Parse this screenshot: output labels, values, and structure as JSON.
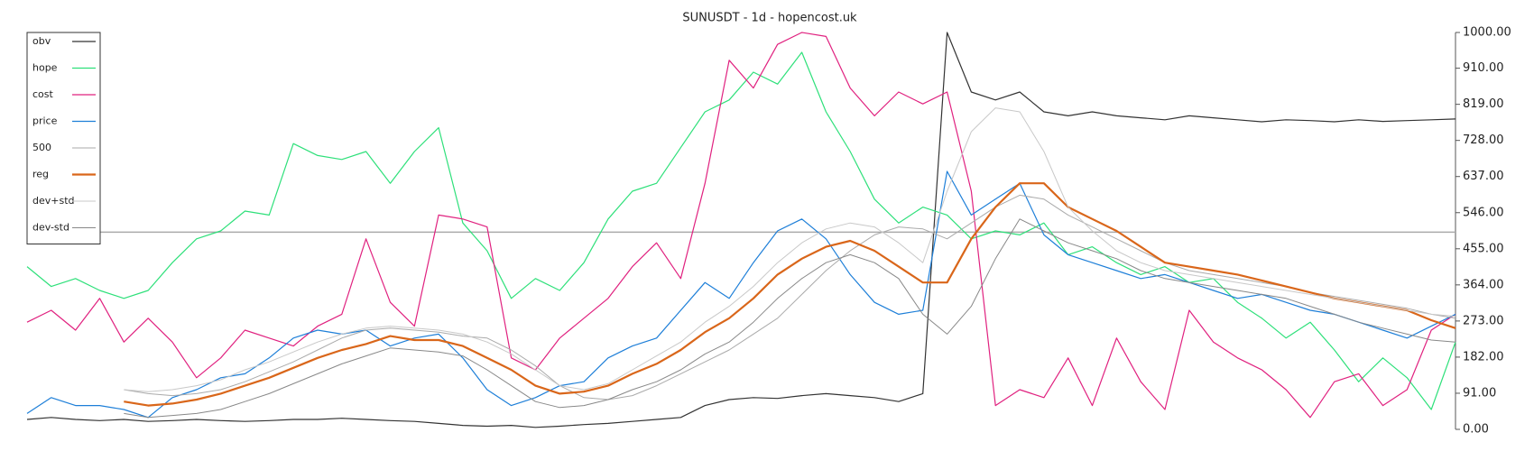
{
  "chart_data": {
    "type": "line",
    "title": "SUNUSDT - 1d - hopencost.uk",
    "ylim": [
      0,
      1000
    ],
    "yticks": [
      {
        "value": 0,
        "label": "0.00"
      },
      {
        "value": 91,
        "label": "91.00"
      },
      {
        "value": 182,
        "label": "182.00"
      },
      {
        "value": 273,
        "label": "273.00"
      },
      {
        "value": 364,
        "label": "364.00"
      },
      {
        "value": 455,
        "label": "455.00"
      },
      {
        "value": 546,
        "label": "546.00"
      },
      {
        "value": 637,
        "label": "637.00"
      },
      {
        "value": 728,
        "label": "728.00"
      },
      {
        "value": 819,
        "label": "819.00"
      },
      {
        "value": 910,
        "label": "910.00"
      },
      {
        "value": 1000,
        "label": "1000.00"
      }
    ],
    "hline": 497,
    "legend": "upper-left",
    "series": [
      {
        "name": "obv",
        "color": "#333333",
        "width": 1.2,
        "values": [
          25,
          30,
          25,
          22,
          25,
          20,
          22,
          25,
          22,
          20,
          22,
          25,
          25,
          28,
          25,
          22,
          20,
          15,
          10,
          8,
          10,
          5,
          8,
          12,
          15,
          20,
          25,
          30,
          60,
          75,
          80,
          78,
          85,
          90,
          85,
          80,
          70,
          90,
          1000,
          850,
          830,
          850,
          800,
          790,
          800,
          790,
          785,
          780,
          790,
          785,
          780,
          775,
          780,
          778,
          775,
          780,
          776,
          778,
          780,
          782
        ]
      },
      {
        "name": "hope",
        "color": "#2ee07a",
        "width": 1.2,
        "values": [
          410,
          360,
          380,
          350,
          330,
          350,
          420,
          480,
          500,
          550,
          540,
          720,
          690,
          680,
          700,
          620,
          700,
          760,
          520,
          450,
          330,
          380,
          350,
          420,
          530,
          600,
          620,
          710,
          800,
          830,
          900,
          870,
          950,
          800,
          700,
          580,
          520,
          560,
          540,
          480,
          500,
          490,
          520,
          440,
          460,
          420,
          390,
          410,
          370,
          380,
          320,
          280,
          230,
          270,
          200,
          120,
          180,
          130,
          50,
          220
        ]
      },
      {
        "name": "cost",
        "color": "#e0217f",
        "width": 1.2,
        "values": [
          270,
          300,
          250,
          330,
          220,
          280,
          220,
          130,
          180,
          250,
          230,
          210,
          260,
          290,
          480,
          320,
          260,
          540,
          530,
          510,
          180,
          150,
          230,
          280,
          330,
          410,
          470,
          380,
          620,
          930,
          860,
          970,
          1000,
          990,
          860,
          790,
          850,
          820,
          850,
          600,
          60,
          100,
          80,
          180,
          60,
          230,
          120,
          50,
          300,
          220,
          180,
          150,
          100,
          30,
          120,
          140,
          60,
          100,
          250,
          290
        ]
      },
      {
        "name": "price",
        "color": "#1e7fd8",
        "width": 1.2,
        "values": [
          40,
          80,
          60,
          60,
          50,
          30,
          80,
          100,
          130,
          140,
          180,
          230,
          250,
          240,
          250,
          210,
          230,
          240,
          180,
          100,
          60,
          80,
          110,
          120,
          180,
          210,
          230,
          300,
          370,
          330,
          420,
          500,
          530,
          480,
          390,
          320,
          290,
          300,
          650,
          540,
          580,
          620,
          490,
          440,
          420,
          400,
          380,
          390,
          370,
          350,
          330,
          340,
          320,
          300,
          290,
          270,
          250,
          230,
          260,
          290
        ]
      },
      {
        "name": "500",
        "color": "#aaaaaa",
        "width": 1,
        "values": [
          null,
          null,
          null,
          null,
          100,
          90,
          85,
          90,
          100,
          120,
          145,
          170,
          200,
          230,
          250,
          255,
          250,
          245,
          235,
          230,
          200,
          160,
          110,
          80,
          75,
          85,
          110,
          140,
          170,
          200,
          240,
          280,
          340,
          400,
          450,
          490,
          510,
          505,
          480,
          520,
          560,
          590,
          580,
          540,
          510,
          480,
          450,
          420,
          400,
          390,
          380,
          370,
          360,
          345,
          335,
          325,
          315,
          305,
          290,
          280
        ]
      },
      {
        "name": "reg",
        "color": "#d9661a",
        "width": 2.2,
        "values": [
          null,
          null,
          null,
          null,
          70,
          60,
          65,
          75,
          90,
          110,
          130,
          155,
          180,
          200,
          215,
          235,
          225,
          225,
          210,
          180,
          150,
          110,
          90,
          95,
          110,
          140,
          165,
          200,
          245,
          280,
          330,
          390,
          430,
          460,
          475,
          450,
          410,
          370,
          370,
          480,
          560,
          620,
          620,
          560,
          530,
          500,
          460,
          420,
          410,
          400,
          390,
          375,
          360,
          345,
          330,
          320,
          310,
          300,
          275,
          255
        ]
      },
      {
        "name": "dev+std",
        "color": "#c8c8c8",
        "width": 1,
        "values": [
          null,
          null,
          null,
          null,
          100,
          95,
          100,
          110,
          125,
          150,
          170,
          195,
          220,
          240,
          255,
          260,
          255,
          250,
          240,
          220,
          190,
          150,
          110,
          100,
          115,
          150,
          185,
          220,
          270,
          310,
          360,
          420,
          470,
          505,
          520,
          510,
          470,
          420,
          600,
          750,
          810,
          800,
          700,
          560,
          500,
          450,
          420,
          400,
          390,
          380,
          370,
          360,
          350,
          340,
          330,
          320,
          310,
          300,
          290,
          285
        ]
      },
      {
        "name": "dev-std",
        "color": "#888888",
        "width": 1,
        "values": [
          null,
          null,
          null,
          null,
          40,
          30,
          35,
          40,
          50,
          70,
          90,
          115,
          140,
          165,
          185,
          205,
          200,
          195,
          185,
          150,
          110,
          70,
          55,
          60,
          75,
          100,
          120,
          150,
          190,
          220,
          270,
          330,
          380,
          420,
          440,
          420,
          380,
          290,
          240,
          310,
          430,
          530,
          500,
          470,
          450,
          430,
          400,
          380,
          370,
          360,
          350,
          340,
          330,
          310,
          290,
          270,
          255,
          240,
          225,
          220
        ]
      }
    ]
  }
}
